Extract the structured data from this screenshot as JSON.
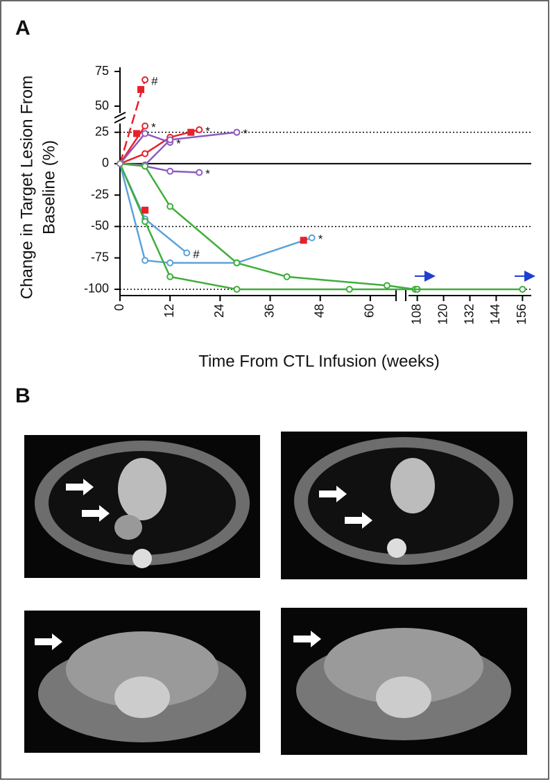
{
  "panels": [
    "A",
    "B"
  ],
  "chart_data": {
    "type": "line",
    "ylabel_lines": [
      "Change in Target Lesion From",
      "Baseline (%)"
    ],
    "xlabel": "Time From CTL Infusion (weeks)",
    "x_segments": [
      [
        0,
        66
      ],
      [
        104,
        160
      ]
    ],
    "y_segments": [
      [
        -105,
        32
      ],
      [
        45,
        78
      ]
    ],
    "xticks": [
      0,
      12,
      24,
      36,
      48,
      60,
      108,
      120,
      132,
      144,
      156
    ],
    "yticks": [
      75,
      50,
      25,
      0,
      -25,
      -50,
      -75,
      -100
    ],
    "reference_lines": [
      25,
      -50,
      -100
    ],
    "series": [
      {
        "color": "#e8202a",
        "dashed": true,
        "x": [
          0,
          6
        ],
        "values": [
          0,
          69
        ],
        "annotation": "#"
      },
      {
        "color": "#e8202a",
        "x": [
          0,
          6
        ],
        "values": [
          0,
          30
        ],
        "annotation": "*"
      },
      {
        "color": "#e8202a",
        "x": [
          0,
          6,
          12,
          19
        ],
        "values": [
          0,
          8,
          21,
          27
        ],
        "annotation": "*"
      },
      {
        "color": "#8a5bbf",
        "x": [
          0,
          6,
          12
        ],
        "values": [
          0,
          24,
          17
        ],
        "annotation": "*"
      },
      {
        "color": "#8a5bbf",
        "x": [
          0,
          6,
          12,
          28
        ],
        "values": [
          0,
          -1,
          19,
          25
        ],
        "annotation": "*"
      },
      {
        "color": "#8a5bbf",
        "x": [
          0,
          6,
          12,
          19
        ],
        "values": [
          0,
          -2,
          -6,
          -7
        ],
        "annotation": "*"
      },
      {
        "color": "#5aa2dc",
        "x": [
          0,
          6,
          16
        ],
        "values": [
          0,
          -44,
          -71
        ],
        "annotation": "#"
      },
      {
        "color": "#5aa2dc",
        "x": [
          0,
          6,
          12,
          28,
          46
        ],
        "values": [
          0,
          -77,
          -79,
          -79,
          -59
        ],
        "annotation": "*"
      },
      {
        "color": "#3fae3a",
        "x": [
          0,
          6,
          12,
          28,
          40,
          64,
          107,
          108
        ],
        "values": [
          0,
          -2,
          -34,
          -79,
          -90,
          -97,
          -100,
          -100
        ]
      },
      {
        "color": "#3fae3a",
        "x": [
          0,
          6,
          12,
          28,
          55,
          156
        ],
        "values": [
          0,
          -46,
          -90,
          -100,
          -100,
          -100
        ]
      }
    ],
    "squares": {
      "color": "#e8202a",
      "x": [
        5,
        4,
        6,
        17,
        44
      ],
      "values": [
        62,
        24,
        -37,
        25,
        -61
      ]
    }
  }
}
